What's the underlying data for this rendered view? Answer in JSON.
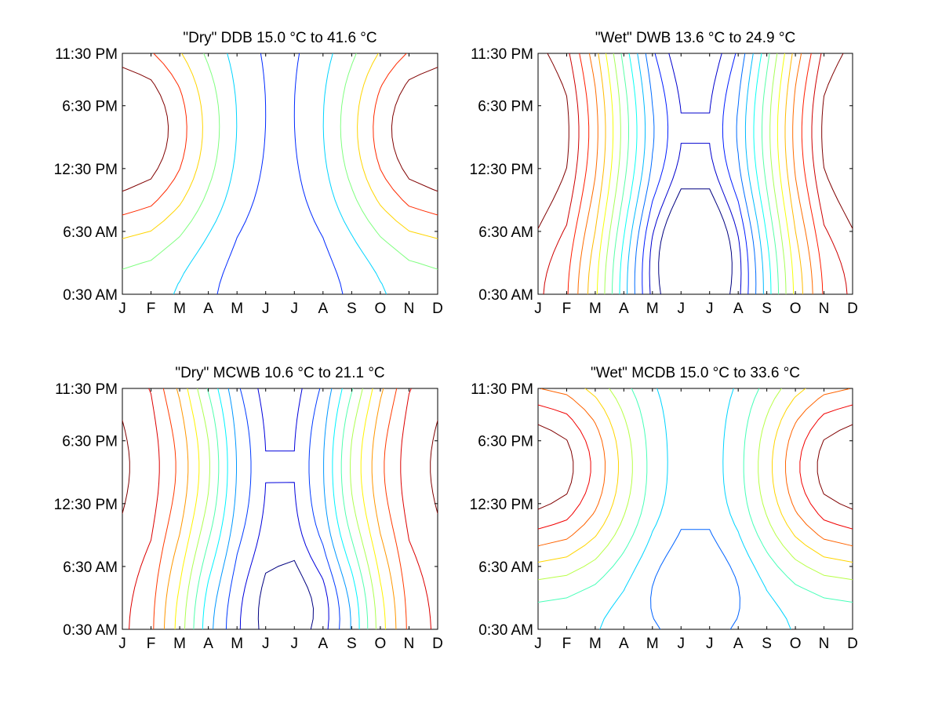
{
  "chart_data": [
    {
      "type": "contour",
      "title": "\"Dry\" DDB  15.0 °C to  41.6 °C",
      "x_tick_labels": [
        "J",
        "F",
        "M",
        "A",
        "M",
        "J",
        "J",
        "A",
        "S",
        "O",
        "N",
        "D"
      ],
      "y_tick_labels": [
        "0:30 AM",
        "6:30 AM",
        "12:30 PM",
        "6:30 PM",
        "11:30 PM"
      ],
      "x": [
        "Jan",
        "Feb",
        "Mar",
        "Apr",
        "May",
        "Jun",
        "Jul",
        "Aug",
        "Sep",
        "Oct",
        "Nov",
        "Dec"
      ],
      "y_hours": [
        0.5,
        6.5,
        12.5,
        18.5,
        23.5
      ],
      "z_range": [
        15.0,
        41.6
      ],
      "levels": 7,
      "colormap": "jet",
      "grid": false
    },
    {
      "type": "contour",
      "title": "\"Wet\" DWB  13.6 °C to  24.9 °C",
      "x_tick_labels": [
        "J",
        "F",
        "M",
        "A",
        "M",
        "J",
        "J",
        "A",
        "S",
        "O",
        "N",
        "D"
      ],
      "y_tick_labels": [
        "0:30 AM",
        "6:30 AM",
        "12:30 PM",
        "6:30 PM",
        "11:30 PM"
      ],
      "x": [
        "Jan",
        "Feb",
        "Mar",
        "Apr",
        "May",
        "Jun",
        "Jul",
        "Aug",
        "Sep",
        "Oct",
        "Nov",
        "Dec"
      ],
      "y_hours": [
        0.5,
        6.5,
        12.5,
        18.5,
        23.5
      ],
      "z_range": [
        13.6,
        24.9
      ],
      "levels": 14,
      "colormap": "jet",
      "grid": false
    },
    {
      "type": "contour",
      "title": "\"Dry\" MCWB  10.6 °C to  21.1 °C",
      "x_tick_labels": [
        "J",
        "F",
        "M",
        "A",
        "M",
        "J",
        "J",
        "A",
        "S",
        "O",
        "N",
        "D"
      ],
      "y_tick_labels": [
        "0:30 AM",
        "6:30 AM",
        "12:30 PM",
        "6:30 PM",
        "11:30 PM"
      ],
      "x": [
        "Jan",
        "Feb",
        "Mar",
        "Apr",
        "May",
        "Jun",
        "Jul",
        "Aug",
        "Sep",
        "Oct",
        "Nov",
        "Dec"
      ],
      "y_hours": [
        0.5,
        6.5,
        12.5,
        18.5,
        23.5
      ],
      "z_range": [
        10.6,
        21.1
      ],
      "levels": 12,
      "colormap": "jet",
      "grid": false
    },
    {
      "type": "contour",
      "title": "\"Wet\" MCDB  15.0 °C to  33.6 °C",
      "x_tick_labels": [
        "J",
        "F",
        "M",
        "A",
        "M",
        "J",
        "J",
        "A",
        "S",
        "O",
        "N",
        "D"
      ],
      "y_tick_labels": [
        "0:30 AM",
        "6:30 AM",
        "12:30 PM",
        "6:30 PM",
        "11:30 PM"
      ],
      "x": [
        "Jan",
        "Feb",
        "Mar",
        "Apr",
        "May",
        "Jun",
        "Jul",
        "Aug",
        "Sep",
        "Oct",
        "Nov",
        "Dec"
      ],
      "y_hours": [
        0.5,
        6.5,
        12.5,
        18.5,
        23.5
      ],
      "z_range": [
        15.0,
        33.6
      ],
      "levels": 10,
      "colormap": "jet",
      "grid": false
    }
  ]
}
